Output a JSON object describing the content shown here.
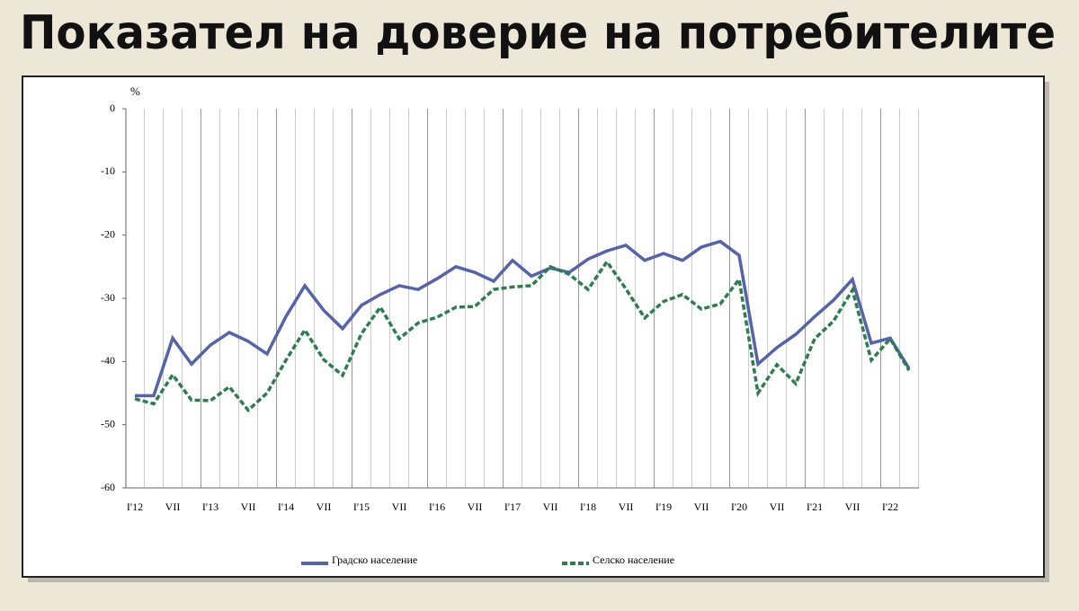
{
  "chart_data": {
    "type": "line",
    "title": "Показател на доверие на потребителите",
    "y_label": "%",
    "categories": [
      "I'12",
      null,
      "VII",
      null,
      "I'13",
      null,
      "VII",
      null,
      "I'14",
      null,
      "VII",
      null,
      "I'15",
      null,
      "VII",
      null,
      "I'16",
      null,
      "VII",
      null,
      "I'17",
      null,
      "VII",
      null,
      "I'18",
      null,
      "VII",
      null,
      "I'19",
      null,
      "VII",
      null,
      "I'20",
      null,
      "VII",
      null,
      "I'21",
      null,
      "VII",
      null,
      "I'22",
      null
    ],
    "series": [
      {
        "name": "Градско население",
        "color": "#5563a8",
        "dash": false,
        "values": [
          -45.4,
          -45.4,
          -36.3,
          -40.4,
          -37.4,
          -35.4,
          -36.8,
          -38.8,
          -32.9,
          -28.0,
          -31.9,
          -34.8,
          -31.1,
          -29.4,
          -28.0,
          -28.6,
          -26.9,
          -25.0,
          -25.9,
          -27.3,
          -24.0,
          -26.5,
          -25.2,
          -25.9,
          -23.8,
          -22.5,
          -21.6,
          -24.0,
          -22.9,
          -24.0,
          -21.9,
          -21.0,
          -23.2,
          -40.4,
          -37.8,
          -35.7,
          -32.9,
          -30.3,
          -27.0,
          -37.1,
          -36.3,
          -41.1
        ]
      },
      {
        "name": "Селско население",
        "color": "#2e7d4f",
        "dash": true,
        "values": [
          -45.9,
          -46.7,
          -42.1,
          -46.1,
          -46.2,
          -44.0,
          -47.7,
          -45.0,
          -39.8,
          -35.0,
          -39.7,
          -42.2,
          -35.6,
          -31.4,
          -36.4,
          -33.9,
          -33.0,
          -31.4,
          -31.3,
          -28.6,
          -28.2,
          -28.0,
          -25.0,
          -26.2,
          -28.6,
          -24.2,
          -28.5,
          -33.1,
          -30.5,
          -29.4,
          -31.7,
          -30.9,
          -27.0,
          -45.0,
          -40.5,
          -43.5,
          -36.4,
          -33.6,
          -28.7,
          -39.8,
          -36.4,
          -41.4
        ]
      }
    ],
    "ylim": [
      -60,
      0
    ],
    "yticks": [
      0,
      -10,
      -20,
      -30,
      -40,
      -50,
      -60
    ],
    "grid": "x"
  }
}
